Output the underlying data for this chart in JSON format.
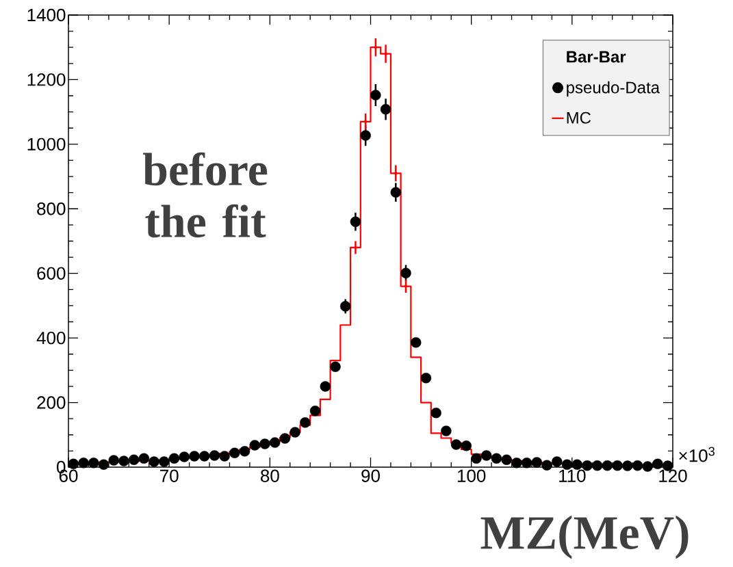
{
  "chart_data": {
    "type": "histogram",
    "xlabel": "MZ(MeV)",
    "legend_title": "Bar-Bar",
    "annotations": [
      "before the fit",
      "×10$^{3}$"
    ],
    "bins": [
      60,
      61,
      62,
      63,
      64,
      65,
      66,
      67,
      68,
      69,
      70,
      71,
      72,
      73,
      74,
      75,
      76,
      77,
      78,
      79,
      80,
      81,
      82,
      83,
      84,
      85,
      86,
      87,
      88,
      89,
      90,
      91,
      92,
      93,
      94,
      95,
      96,
      97,
      98,
      99,
      100,
      101,
      102,
      103,
      104,
      105,
      106,
      107,
      108,
      109,
      110,
      111,
      112,
      113,
      114,
      115,
      116,
      117,
      118,
      119,
      120
    ],
    "series": [
      {
        "name": "pseudo-Data",
        "type": "scatter",
        "color": "#000000",
        "marker": "circle",
        "x": [
          60.5,
          61.5,
          62.5,
          63.5,
          64.5,
          65.5,
          66.5,
          67.5,
          68.5,
          69.5,
          70.5,
          71.5,
          72.5,
          73.5,
          74.5,
          75.5,
          76.5,
          77.5,
          78.5,
          79.5,
          80.5,
          81.5,
          82.5,
          83.5,
          84.5,
          85.5,
          86.5,
          87.5,
          88.5,
          89.5,
          90.5,
          91.5,
          92.5,
          93.5,
          94.5,
          95.5,
          96.5,
          97.5,
          98.5,
          99.5,
          100.5,
          101.5,
          102.5,
          103.5,
          104.5,
          105.5,
          106.5,
          107.5,
          108.5,
          109.5,
          110.5,
          111.5,
          112.5,
          113.5,
          114.5,
          115.5,
          116.5,
          117.5,
          118.5,
          119.5
        ],
        "values": [
          10,
          13,
          13,
          8,
          21,
          19,
          23,
          27,
          17,
          17,
          27,
          32,
          34,
          34,
          36,
          34,
          44,
          49,
          68,
          72,
          76,
          89,
          108,
          138,
          174,
          250,
          311,
          498,
          760,
          1027,
          1152,
          1108,
          851,
          601,
          386,
          276,
          168,
          112,
          70,
          66,
          27,
          36,
          27,
          23,
          13,
          13,
          15,
          6,
          17,
          8,
          8,
          5,
          5,
          5,
          5,
          4,
          5,
          2,
          10,
          4
        ],
        "errors": [
          null,
          null,
          null,
          null,
          null,
          null,
          null,
          null,
          null,
          null,
          null,
          null,
          null,
          null,
          null,
          null,
          null,
          null,
          null,
          null,
          null,
          null,
          null,
          null,
          null,
          null,
          null,
          22,
          28,
          32,
          34,
          33,
          29,
          25,
          null,
          null,
          null,
          null,
          null,
          null,
          null,
          null,
          null,
          null,
          null,
          null,
          null,
          null,
          null,
          null,
          null,
          null,
          null,
          null,
          null,
          null,
          null,
          null,
          null,
          null
        ]
      },
      {
        "name": "MC",
        "color": "#ff0000",
        "values": [
          12,
          13,
          14,
          15,
          16,
          17,
          18,
          19,
          20,
          22,
          24,
          27,
          30,
          33,
          37,
          42,
          48,
          55,
          62,
          70,
          80,
          92,
          108,
          130,
          160,
          210,
          330,
          440,
          680,
          1070,
          1300,
          1280,
          910,
          560,
          340,
          200,
          105,
          90,
          75,
          55,
          40,
          33,
          28,
          24,
          20,
          17,
          15,
          13,
          12,
          11,
          10,
          9,
          9,
          8,
          8,
          7,
          7,
          6,
          6,
          6
        ]
      },
      {
        "type": "scatter",
        "color": "#ff0000",
        "marker": "none",
        "x": [
          88.5,
          89.5,
          90.5,
          91.5,
          92.5,
          93.5
        ],
        "values": [
          680,
          1070,
          1300,
          1280,
          910,
          560
        ],
        "errors": [
          20,
          25,
          28,
          28,
          25,
          20
        ]
      }
    ],
    "xlim": [
      60,
      120
    ],
    "ylim": [
      0,
      1400
    ],
    "xticks": [
      60,
      70,
      80,
      90,
      100,
      110,
      120
    ],
    "yticks": [
      0,
      200,
      400,
      600,
      800,
      1000,
      1200,
      1400
    ],
    "legend": "top right"
  }
}
